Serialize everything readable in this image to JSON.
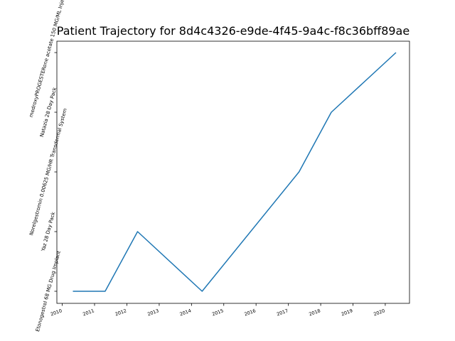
{
  "chart_data": {
    "type": "line",
    "title": "Patient Trajectory for 8d4c4326-e9de-4f45-9a4c-f8c36bff89ae",
    "xlabel": "",
    "ylabel": "",
    "grid": false,
    "x_tick_labels": [
      "2010",
      "2011",
      "2012",
      "2013",
      "2014",
      "2015",
      "2016",
      "2017",
      "2018",
      "2019",
      "2020"
    ],
    "y_tick_labels": [
      "Etonogestrel 68 MG Drug Implant",
      "Yaz 28 Day Pack",
      "Norelgestromin 0.00625 MG/HR Transdermal System",
      "Natazia 28 Day Pack",
      "medroxyPROGESTERone acetate 150 MG/ML Injection"
    ],
    "xlim": [
      "2009-11-01",
      "2020-10-01"
    ],
    "series": [
      {
        "color": "#1f77b4",
        "points": [
          {
            "x": "2010-05-01",
            "y": "Etonogestrel 68 MG Drug Implant"
          },
          {
            "x": "2011-05-01",
            "y": "Etonogestrel 68 MG Drug Implant"
          },
          {
            "x": "2012-05-01",
            "y": "Yaz 28 Day Pack"
          },
          {
            "x": "2014-05-01",
            "y": "Etonogestrel 68 MG Drug Implant"
          },
          {
            "x": "2017-05-01",
            "y": "Norelgestromin 0.00625 MG/HR Transdermal System"
          },
          {
            "x": "2018-05-01",
            "y": "Natazia 28 Day Pack"
          },
          {
            "x": "2020-05-01",
            "y": "medroxyPROGESTERone acetate 150 MG/ML Injection"
          }
        ]
      }
    ]
  }
}
